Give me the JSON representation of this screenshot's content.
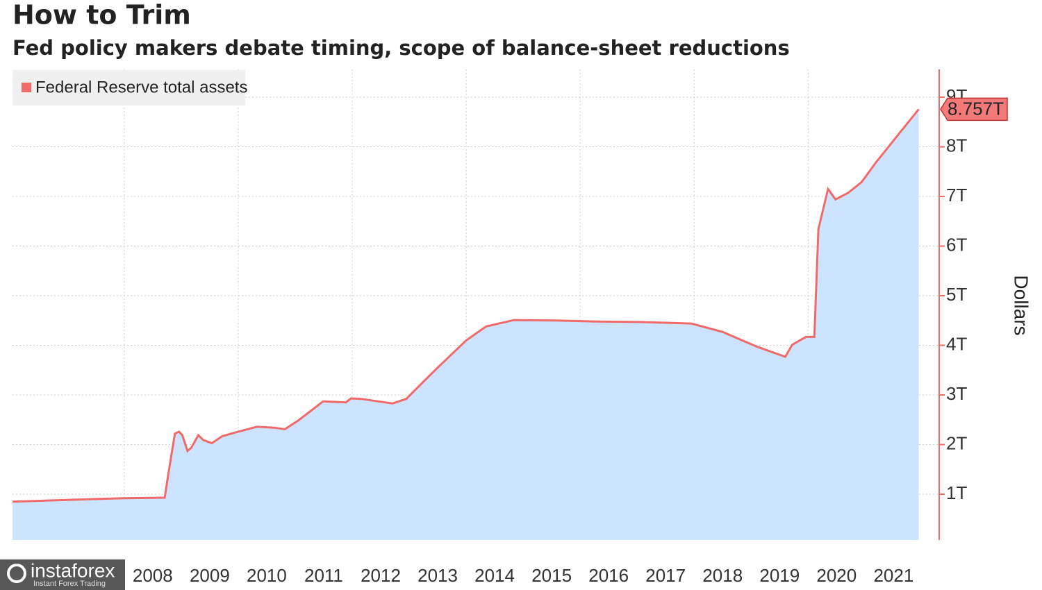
{
  "chart_data": {
    "type": "area",
    "title": "How to Trim",
    "subtitle": "Fed policy makers debate timing, scope of balance-sheet reductions",
    "y_label": "Dollars",
    "xlim": [
      2006.04,
      2022.3
    ],
    "xticks": [
      2008,
      2009,
      2010,
      2011,
      2012,
      2013,
      2014,
      2015,
      2016,
      2017,
      2018,
      2019,
      2020,
      2021
    ],
    "ylim": [
      0,
      9.56
    ],
    "yticks": [
      {
        "value": 1,
        "label": "1T"
      },
      {
        "value": 2,
        "label": "2T"
      },
      {
        "value": 3,
        "label": "3T"
      },
      {
        "value": 4,
        "label": "4T"
      },
      {
        "value": 5,
        "label": "5T"
      },
      {
        "value": 6,
        "label": "6T"
      },
      {
        "value": 7,
        "label": "7T"
      },
      {
        "value": 8,
        "label": "8T"
      },
      {
        "value": 9,
        "label": "9T"
      }
    ],
    "grid": true,
    "legend": "top-left",
    "series": [
      {
        "name": "Federal Reserve total assets",
        "color": "#f06a6a",
        "fill": "#cce4ff",
        "x": [
          2006.04,
          2008.0,
          2008.71,
          2008.78,
          2008.89,
          2008.96,
          2009.02,
          2009.11,
          2009.18,
          2009.3,
          2009.39,
          2009.54,
          2009.72,
          2010.0,
          2010.33,
          2010.63,
          2010.82,
          2011.06,
          2011.49,
          2011.89,
          2011.98,
          2012.16,
          2012.46,
          2012.71,
          2012.95,
          2013.13,
          2013.5,
          2014.0,
          2014.35,
          2014.84,
          2015.57,
          2016.3,
          2017.04,
          2017.95,
          2018.5,
          2019.11,
          2019.6,
          2019.72,
          2019.96,
          2020.11,
          2020.18,
          2020.35,
          2020.48,
          2020.7,
          2020.94,
          2021.18,
          2021.55,
          2021.94
        ],
        "values": [
          0.85,
          0.92,
          0.93,
          1.45,
          2.22,
          2.26,
          2.19,
          1.87,
          1.94,
          2.19,
          2.09,
          2.03,
          2.17,
          2.26,
          2.36,
          2.34,
          2.31,
          2.49,
          2.87,
          2.85,
          2.93,
          2.92,
          2.87,
          2.83,
          2.92,
          3.13,
          3.55,
          4.1,
          4.38,
          4.51,
          4.5,
          4.48,
          4.47,
          4.44,
          4.27,
          3.97,
          3.77,
          4.01,
          4.17,
          4.17,
          6.34,
          7.15,
          6.94,
          7.07,
          7.29,
          7.67,
          8.2,
          8.757
        ]
      }
    ],
    "current_value": {
      "value": 8.757,
      "label": "8.757T"
    }
  },
  "watermark": {
    "brand": "instaforex",
    "tagline": "Instant Forex Trading"
  }
}
